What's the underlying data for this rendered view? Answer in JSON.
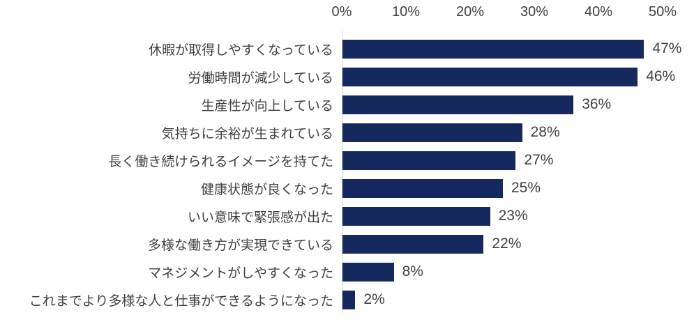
{
  "chart_data": {
    "type": "bar",
    "orientation": "horizontal",
    "title": "",
    "categories": [
      "休暇が取得しやすくなっている",
      "労働時間が減少している",
      "生産性が向上している",
      "気持ちに余裕が生まれている",
      "長く働き続けられるイメージを持てた",
      "健康状態が良くなった",
      "いい意味で緊張感が出た",
      "多様な働き方が実現できている",
      "マネジメントがしやすくなった",
      "これまでより多様な人と仕事ができるようになった"
    ],
    "values": [
      47,
      46,
      36,
      28,
      27,
      25,
      23,
      22,
      8,
      2
    ],
    "value_labels": [
      "47%",
      "46%",
      "36%",
      "28%",
      "27%",
      "25%",
      "23%",
      "22%",
      "8%",
      "2%"
    ],
    "x_ticks": [
      {
        "label": "0%",
        "value": 0
      },
      {
        "label": "10%",
        "value": 10
      },
      {
        "label": "20%",
        "value": 20
      },
      {
        "label": "30%",
        "value": 30
      },
      {
        "label": "40%",
        "value": 40
      },
      {
        "label": "50%",
        "value": 50
      }
    ],
    "xlim": [
      0,
      50
    ],
    "xlabel": "",
    "ylabel": "",
    "grid": false,
    "legend": false,
    "colors": {
      "bar": "#15295e",
      "axis_line": "#d9d9d9",
      "text": "#404040",
      "background": "#ffffff"
    }
  }
}
